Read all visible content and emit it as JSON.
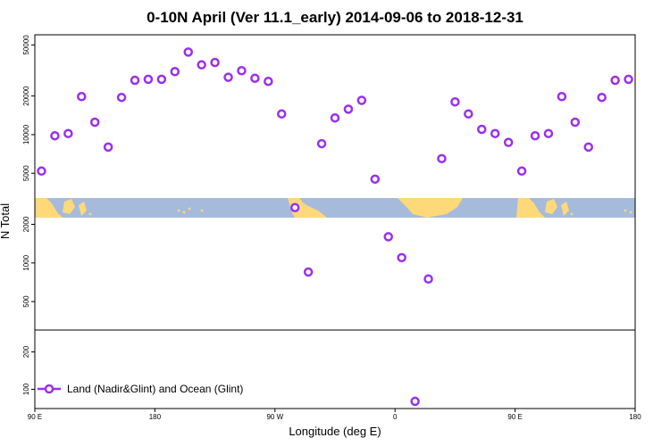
{
  "chart_data": {
    "type": "scatter",
    "title": "0-10N April (Ver 11.1_early)   2014-09-06 to 2018-12-31",
    "xlabel": "Longitude (deg E)",
    "ylabel": "N Total",
    "x_ticks": [
      {
        "value": 90,
        "label": "90 E"
      },
      {
        "value": 180,
        "label": "180"
      },
      {
        "value": 270,
        "label": "90 W"
      },
      {
        "value": 360,
        "label": "0"
      },
      {
        "value": 450,
        "label": "90 E"
      },
      {
        "value": 540,
        "label": "180"
      }
    ],
    "xlim": [
      90,
      540
    ],
    "y_scale": "log",
    "ylim_upper_panel": [
      300,
      60000
    ],
    "ylim_lower_panel": [
      70,
      300
    ],
    "y_ticks_upper": [
      500,
      1000,
      2000,
      5000,
      10000,
      20000,
      50000
    ],
    "y_ticks_lower": [
      100,
      200
    ],
    "grid": false,
    "legend_position": "bottom-left",
    "marker_color": "#9b30f0",
    "land_color": "#ffd979",
    "ocean_color": "#a6bbdc",
    "series": [
      {
        "name": "Land (Nadir&Glint) and Ocean (Glint)",
        "x": [
          95,
          105,
          115,
          125,
          135,
          145,
          155,
          165,
          175,
          185,
          195,
          205,
          215,
          225,
          235,
          245,
          255,
          265,
          275,
          285,
          295,
          305,
          315,
          325,
          335,
          345,
          355,
          365,
          375,
          385,
          395,
          405,
          415,
          425,
          435,
          445,
          455,
          465,
          475,
          485,
          495,
          505,
          515,
          525,
          535
        ],
        "y": [
          5200,
          9800,
          10200,
          19800,
          12500,
          8000,
          19500,
          26500,
          27000,
          27000,
          31000,
          44000,
          35000,
          36500,
          28000,
          31500,
          27500,
          26000,
          14500,
          2700,
          850,
          8500,
          13500,
          15800,
          18500,
          4500,
          1600,
          1100,
          80,
          750,
          6500,
          18000,
          14500,
          11000,
          10200,
          8700,
          5200,
          9800,
          10200,
          19800,
          12500,
          8000,
          19500,
          26500,
          27000
        ]
      }
    ]
  }
}
